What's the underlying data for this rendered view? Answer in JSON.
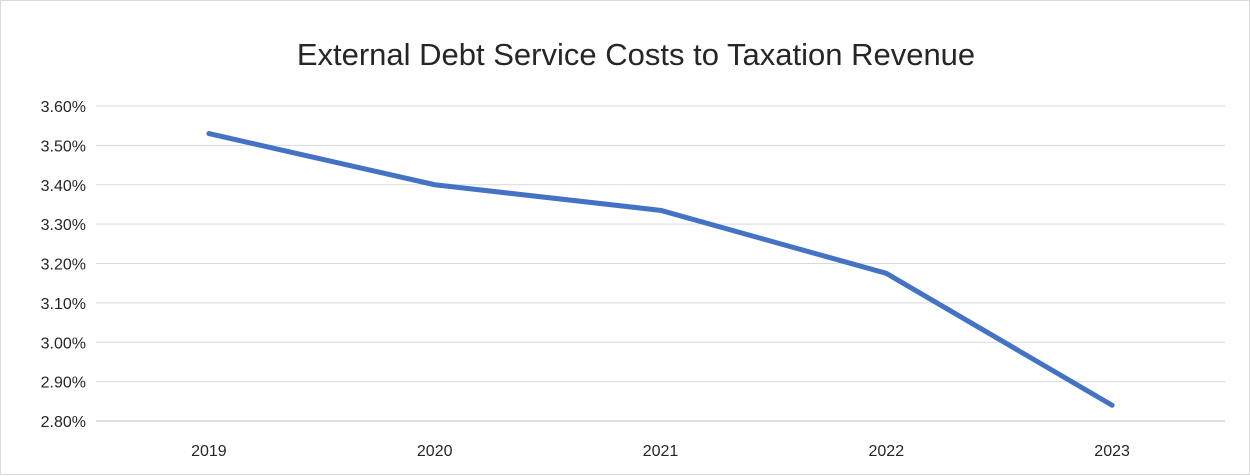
{
  "chart_data": {
    "type": "line",
    "title": "External Debt Service Costs to Taxation Revenue",
    "xlabel": "",
    "ylabel": "",
    "categories": [
      "2019",
      "2020",
      "2021",
      "2022",
      "2023"
    ],
    "series": [
      {
        "values": [
          3.53,
          3.4,
          3.335,
          3.175,
          2.84
        ],
        "color": "#4472c4"
      }
    ],
    "ylim": [
      2.8,
      3.6
    ],
    "yticks": [
      "2.80%",
      "2.90%",
      "3.00%",
      "3.10%",
      "3.20%",
      "3.30%",
      "3.40%",
      "3.50%",
      "3.60%"
    ],
    "grid": true,
    "legend": "none"
  }
}
